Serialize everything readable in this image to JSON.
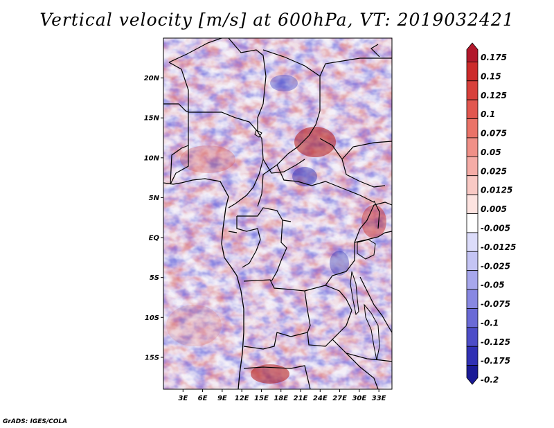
{
  "title": "Vertical velocity [m/s] at 600hPa, VT: 2019032421",
  "credit": "GrADS: IGES/COLA",
  "map": {
    "lat_range": [
      -19,
      25
    ],
    "lon_range": [
      0,
      35
    ],
    "lat_ticks": [
      {
        "value": 20,
        "label": "20N"
      },
      {
        "value": 15,
        "label": "15N"
      },
      {
        "value": 10,
        "label": "10N"
      },
      {
        "value": 5,
        "label": "5N"
      },
      {
        "value": 0,
        "label": "EQ"
      },
      {
        "value": -5,
        "label": "5S"
      },
      {
        "value": -10,
        "label": "10S"
      },
      {
        "value": -15,
        "label": "15S"
      }
    ],
    "lon_ticks": [
      {
        "value": 3,
        "label": "3E"
      },
      {
        "value": 6,
        "label": "6E"
      },
      {
        "value": 9,
        "label": "9E"
      },
      {
        "value": 12,
        "label": "12E"
      },
      {
        "value": 15,
        "label": "15E"
      },
      {
        "value": 18,
        "label": "18E"
      },
      {
        "value": 21,
        "label": "21E"
      },
      {
        "value": 24,
        "label": "24E"
      },
      {
        "value": 27,
        "label": "27E"
      },
      {
        "value": 30,
        "label": "30E"
      },
      {
        "value": 33,
        "label": "33E"
      }
    ]
  },
  "colorbar": {
    "labels": [
      "0.175",
      "0.15",
      "0.125",
      "0.1",
      "0.075",
      "0.05",
      "0.025",
      "0.0125",
      "0.005",
      "-0.005",
      "-0.0125",
      "-0.025",
      "-0.05",
      "-0.075",
      "-0.1",
      "-0.125",
      "-0.175",
      "-0.2"
    ],
    "colors": [
      "#b2182b",
      "#cc2a2a",
      "#d8403b",
      "#e2574f",
      "#ea7368",
      "#f09087",
      "#f5aca6",
      "#f9c9c4",
      "#fde3e0",
      "#ffffff",
      "#dcdcfa",
      "#c4c4f4",
      "#a7a7ec",
      "#8888e2",
      "#6a6ad6",
      "#4d4dc8",
      "#3030b4",
      "#1a1a96"
    ]
  }
}
